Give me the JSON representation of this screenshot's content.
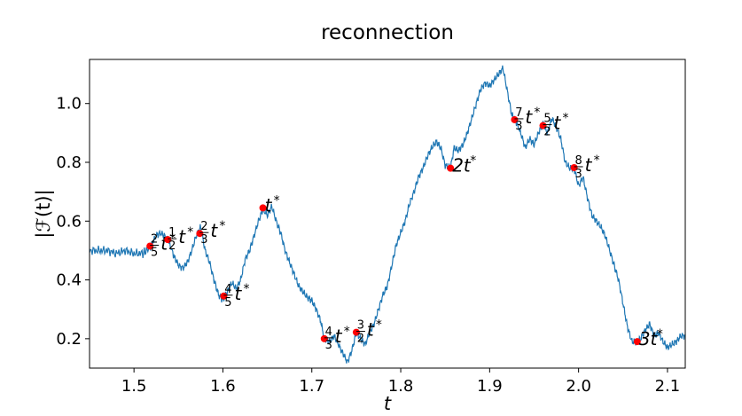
{
  "chart_data": {
    "type": "line",
    "title": "reconnection",
    "xlabel": "t",
    "ylabel": "|ℱ(t)|",
    "xlim": [
      1.45,
      2.12
    ],
    "ylim": [
      0.1,
      1.15
    ],
    "xticks": [
      "1.5",
      "1.6",
      "1.7",
      "1.8",
      "1.9",
      "2.0",
      "2.1"
    ],
    "yticks": [
      "0.2",
      "0.4",
      "0.6",
      "0.8",
      "1.0"
    ],
    "grid": false,
    "line_color": "#1f77b4",
    "marker_color": "#ff0000",
    "series": [
      {
        "x": [
          1.45,
          1.46,
          1.47,
          1.48,
          1.49,
          1.5,
          1.51,
          1.518,
          1.525,
          1.53,
          1.538,
          1.545,
          1.55,
          1.555,
          1.56,
          1.565,
          1.57,
          1.575,
          1.58,
          1.585,
          1.59,
          1.595,
          1.6,
          1.605,
          1.61,
          1.615,
          1.62,
          1.625,
          1.63,
          1.635,
          1.64,
          1.645,
          1.65,
          1.655,
          1.66,
          1.665,
          1.67,
          1.675,
          1.68,
          1.685,
          1.69,
          1.695,
          1.7,
          1.705,
          1.71,
          1.714,
          1.72,
          1.725,
          1.73,
          1.735,
          1.74,
          1.745,
          1.75,
          1.755,
          1.76,
          1.765,
          1.77,
          1.775,
          1.78,
          1.785,
          1.79,
          1.795,
          1.8,
          1.805,
          1.81,
          1.815,
          1.82,
          1.825,
          1.83,
          1.835,
          1.84,
          1.845,
          1.85,
          1.856,
          1.86,
          1.865,
          1.87,
          1.875,
          1.88,
          1.885,
          1.89,
          1.895,
          1.9,
          1.905,
          1.91,
          1.915,
          1.92,
          1.925,
          1.928,
          1.935,
          1.94,
          1.945,
          1.95,
          1.955,
          1.96,
          1.965,
          1.97,
          1.975,
          1.98,
          1.985,
          1.99,
          1.995,
          2.0,
          2.005,
          2.01,
          2.015,
          2.02,
          2.025,
          2.03,
          2.035,
          2.04,
          2.045,
          2.05,
          2.055,
          2.06,
          2.066,
          2.07,
          2.075,
          2.08,
          2.085,
          2.09,
          2.095,
          2.1,
          2.105,
          2.11,
          2.115,
          2.12
        ],
        "y": [
          0.5,
          0.5,
          0.5,
          0.49,
          0.5,
          0.49,
          0.49,
          0.51,
          0.55,
          0.56,
          0.54,
          0.48,
          0.45,
          0.44,
          0.46,
          0.5,
          0.55,
          0.58,
          0.5,
          0.46,
          0.4,
          0.35,
          0.33,
          0.36,
          0.39,
          0.37,
          0.4,
          0.47,
          0.5,
          0.55,
          0.6,
          0.64,
          0.62,
          0.65,
          0.6,
          0.56,
          0.5,
          0.46,
          0.42,
          0.38,
          0.36,
          0.34,
          0.33,
          0.3,
          0.26,
          0.2,
          0.19,
          0.21,
          0.18,
          0.15,
          0.12,
          0.16,
          0.22,
          0.2,
          0.18,
          0.22,
          0.25,
          0.3,
          0.35,
          0.38,
          0.45,
          0.52,
          0.56,
          0.6,
          0.66,
          0.7,
          0.75,
          0.78,
          0.82,
          0.85,
          0.87,
          0.85,
          0.79,
          0.78,
          0.85,
          0.84,
          0.86,
          0.9,
          0.95,
          1.0,
          1.05,
          1.07,
          1.06,
          1.08,
          1.1,
          1.12,
          1.04,
          0.96,
          0.95,
          0.9,
          0.85,
          0.88,
          0.86,
          0.9,
          0.93,
          0.9,
          0.95,
          0.92,
          0.88,
          0.8,
          0.78,
          0.78,
          0.72,
          0.75,
          0.68,
          0.62,
          0.6,
          0.58,
          0.55,
          0.5,
          0.45,
          0.4,
          0.32,
          0.24,
          0.19,
          0.19,
          0.2,
          0.23,
          0.25,
          0.21,
          0.22,
          0.19,
          0.17,
          0.18,
          0.19,
          0.21,
          0.21
        ]
      }
    ],
    "markers": [
      {
        "x": 1.518,
        "y": 0.515,
        "frac_num": "2",
        "frac_den": "5",
        "label": "t",
        "sup": "*"
      },
      {
        "x": 1.538,
        "y": 0.537,
        "frac_num": "1",
        "frac_den": "2",
        "label": "t",
        "sup": "*"
      },
      {
        "x": 1.574,
        "y": 0.558,
        "frac_num": "2",
        "frac_den": "3",
        "label": "t",
        "sup": "*"
      },
      {
        "x": 1.601,
        "y": 0.345,
        "frac_num": "4",
        "frac_den": "5",
        "label": "t",
        "sup": "*"
      },
      {
        "x": 1.645,
        "y": 0.645,
        "frac_num": "",
        "frac_den": "",
        "label": "t",
        "sup": "*"
      },
      {
        "x": 1.714,
        "y": 0.2,
        "frac_num": "4",
        "frac_den": "3",
        "label": "t",
        "sup": "*"
      },
      {
        "x": 1.75,
        "y": 0.222,
        "frac_num": "3",
        "frac_den": "2",
        "label": "t",
        "sup": "*"
      },
      {
        "x": 1.856,
        "y": 0.78,
        "frac_num": "",
        "frac_den": "",
        "label": "2t",
        "sup": "*"
      },
      {
        "x": 1.928,
        "y": 0.945,
        "frac_num": "7",
        "frac_den": "3",
        "label": "t",
        "sup": "*"
      },
      {
        "x": 1.96,
        "y": 0.925,
        "frac_num": "5",
        "frac_den": "2",
        "label": "t",
        "sup": "*"
      },
      {
        "x": 1.995,
        "y": 0.782,
        "frac_num": "8",
        "frac_den": "3",
        "label": "t",
        "sup": "*"
      },
      {
        "x": 2.066,
        "y": 0.19,
        "frac_num": "",
        "frac_den": "",
        "label": "3t",
        "sup": "*"
      }
    ]
  }
}
